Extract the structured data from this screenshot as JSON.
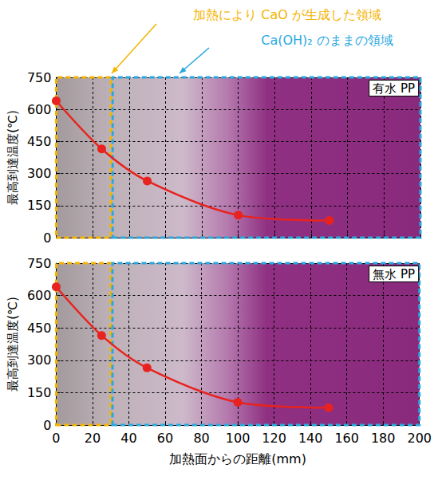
{
  "chart_data": [
    {
      "type": "line",
      "panel_label": "有水 PP",
      "x": [
        0,
        25,
        50,
        100,
        150
      ],
      "values": [
        640,
        415,
        265,
        105,
        80
      ],
      "color": "#e8231f",
      "marker": "circle",
      "xlim": [
        0,
        200
      ],
      "xticks": [
        0,
        20,
        40,
        60,
        80,
        100,
        120,
        140,
        160,
        180,
        200
      ],
      "ylim": [
        0,
        750
      ],
      "yticks": [
        0,
        150,
        300,
        450,
        600,
        750
      ],
      "ylabel": "最高到達温度(℃)",
      "grid": true,
      "tick_labels": "y",
      "regions": [
        {
          "range": [
            0,
            30
          ],
          "color": "#f5b400"
        },
        {
          "range": [
            31,
            200
          ],
          "color": "#29a8e0"
        }
      ],
      "annotations": [
        {
          "text": "加熱により CaO が生成した領域",
          "color": "#f5b400"
        },
        {
          "text": "Ca(OH)₂ のままの領域",
          "color": "#29a8e0"
        }
      ]
    },
    {
      "type": "line",
      "panel_label": "無水 PP",
      "x": [
        0,
        25,
        50,
        100,
        150
      ],
      "values": [
        640,
        415,
        265,
        105,
        80
      ],
      "color": "#e8231f",
      "marker": "circle",
      "xlim": [
        0,
        200
      ],
      "xticks": [
        0,
        20,
        40,
        60,
        80,
        100,
        120,
        140,
        160,
        180,
        200
      ],
      "ylim": [
        0,
        750
      ],
      "yticks": [
        0,
        150,
        300,
        450,
        600,
        750
      ],
      "ylabel": "最高到達温度(℃)",
      "xlabel": "加熱面からの距離(mm)",
      "grid": true,
      "regions": [
        {
          "range": [
            0,
            30
          ],
          "color": "#f5b400"
        },
        {
          "range": [
            31,
            200
          ],
          "color": "#29a8e0"
        }
      ]
    }
  ]
}
